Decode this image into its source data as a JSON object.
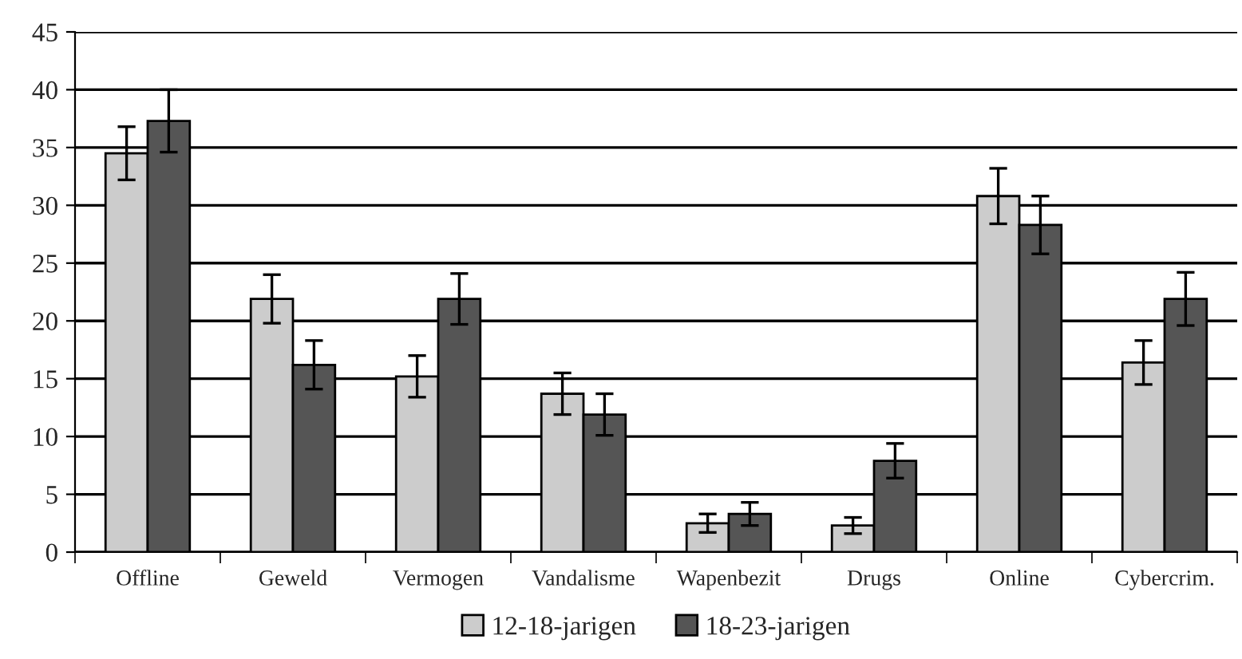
{
  "chart_data": {
    "type": "bar",
    "categories": [
      "Offline",
      "Geweld",
      "Vermogen",
      "Vandalisme",
      "Wapenbezit",
      "Drugs",
      "Online",
      "Cybercrim."
    ],
    "series": [
      {
        "name": "12-18-jarigen",
        "color": "#cccccc",
        "values": [
          34.5,
          21.9,
          15.2,
          13.7,
          2.5,
          2.3,
          30.8,
          16.4
        ],
        "errors": [
          2.3,
          2.1,
          1.8,
          1.8,
          0.8,
          0.7,
          2.4,
          1.9
        ]
      },
      {
        "name": "18-23-jarigen",
        "color": "#555555",
        "values": [
          37.3,
          16.2,
          21.9,
          11.9,
          3.3,
          7.9,
          28.3,
          21.9
        ],
        "errors": [
          2.7,
          2.1,
          2.2,
          1.8,
          1.0,
          1.5,
          2.5,
          2.3
        ]
      }
    ],
    "ylim": [
      0,
      45
    ],
    "yticks": [
      0,
      5,
      10,
      15,
      20,
      25,
      30,
      35,
      40,
      45
    ],
    "grid": "y",
    "legend": "bottom"
  }
}
